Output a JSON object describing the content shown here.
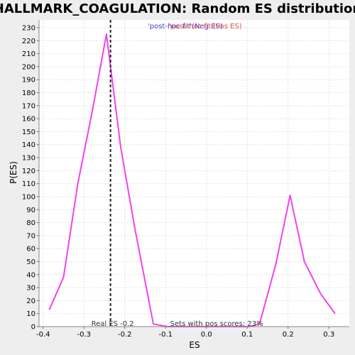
{
  "chart_data": {
    "type": "line",
    "title": "HALLMARK_COAGULATION: Random ES distribution",
    "xlabel": "ES",
    "ylabel": "P(ES)",
    "xlim": [
      -0.41,
      0.35
    ],
    "ylim": [
      0,
      236
    ],
    "x_ticks": [
      -0.4,
      -0.3,
      -0.2,
      -0.1,
      0.0,
      0.1,
      0.2,
      0.3
    ],
    "x_tick_labels": [
      "-0.4",
      "-0.3",
      "-0.2",
      "-0.1",
      "0.0",
      "0.1",
      "0.2",
      "0.3"
    ],
    "y_ticks": [
      0,
      10,
      20,
      30,
      40,
      50,
      60,
      70,
      80,
      90,
      100,
      110,
      120,
      130,
      140,
      150,
      160,
      170,
      180,
      190,
      200,
      210,
      220,
      230
    ],
    "grid": true,
    "series": [
      {
        "color": "#ee44ee",
        "x": [
          -0.385,
          -0.35,
          -0.315,
          -0.28,
          -0.245,
          -0.21,
          -0.175,
          -0.13,
          -0.095,
          -0.06,
          -0.025,
          0.01,
          0.045,
          0.08,
          0.105,
          0.13,
          0.17,
          0.205,
          0.24,
          0.28,
          0.315
        ],
        "y": [
          13,
          38,
          110,
          165,
          225,
          138,
          75,
          2,
          0,
          0,
          0,
          0,
          0,
          0,
          0,
          2,
          48,
          101,
          50,
          25,
          10
        ]
      }
    ],
    "real_es": -0.235,
    "annotations": {
      "real_es_label": "Real ES -0.2",
      "pos_scores_label": "Sets with pos scores: 23%"
    },
    "legend": {
      "placement": "top-center",
      "entries": [
        {
          "label": "'post-hoc fit'(Neg ES)",
          "color": "#4444cc"
        },
        {
          "label": "'post-hoc fit'(Pos ES)",
          "color": "#ee4444"
        }
      ]
    }
  }
}
